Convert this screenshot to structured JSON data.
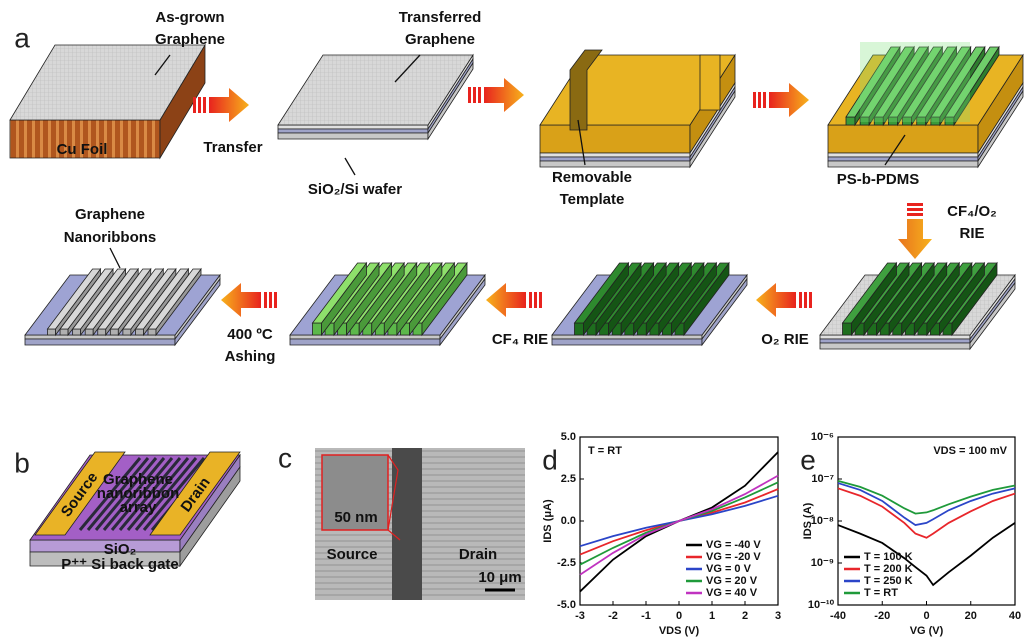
{
  "panel_a": {
    "label": "a",
    "as_grown": [
      "As-grown",
      "Graphene"
    ],
    "cu_foil": "Cu Foil",
    "transfer": "Transfer",
    "transferred": [
      "Transferred",
      "Graphene"
    ],
    "wafer": "SiO₂/Si wafer",
    "template": [
      "Removable",
      "Template"
    ],
    "bcp": "PS-b-PDMS",
    "rie1": [
      "CF₄/O₂",
      "RIE"
    ],
    "o2": "O₂ RIE",
    "cf4": "CF₄ RIE",
    "ashing": [
      "400 ºC",
      "Ashing"
    ],
    "gnr": [
      "Graphene",
      "Nanoribbons"
    ]
  },
  "panel_b": {
    "label": "b",
    "source": "Source",
    "drain": "Drain",
    "array": [
      "Graphene",
      "nanoribbon",
      "array"
    ],
    "oxide": "SiO₂",
    "gate": "P⁺⁺ Si back gate"
  },
  "panel_c": {
    "label": "c",
    "inset_scale": "50 nm",
    "source": "Source",
    "drain": "Drain",
    "scale": "10 μm"
  },
  "chart_labels": [
    "d",
    "e"
  ],
  "chart_data": [
    {
      "type": "line",
      "annotation": "T = RT",
      "xlabel": "VDS (V)",
      "ylabel": "IDS (μA)",
      "x": [
        -3,
        -2,
        -1,
        0,
        1,
        2,
        3
      ],
      "xlim": [
        -3,
        3
      ],
      "xticks": [
        -3,
        -2,
        -1,
        0,
        1,
        2,
        3
      ],
      "ylim": [
        -5,
        5
      ],
      "yticks": [
        {
          "value": -5,
          "label": "-5.0"
        },
        {
          "value": -2.5,
          "label": "-2.5"
        },
        {
          "value": 0,
          "label": "0.0"
        },
        {
          "value": 2.5,
          "label": "2.5"
        },
        {
          "value": 5,
          "label": "5.0"
        }
      ],
      "legend": "lower right",
      "series": [
        {
          "name": "VG = -40 V",
          "color": "#000000",
          "values": [
            -4.2,
            -2.3,
            -0.9,
            0,
            0.8,
            2.1,
            4.1
          ]
        },
        {
          "name": "VG = -20 V",
          "color": "#e8262b",
          "values": [
            -2.0,
            -1.2,
            -0.55,
            0,
            0.5,
            1.1,
            1.9
          ]
        },
        {
          "name": "VG =   0 V",
          "color": "#2b45c8",
          "values": [
            -1.5,
            -0.9,
            -0.4,
            0,
            0.4,
            0.9,
            1.5
          ]
        },
        {
          "name": "VG =  20 V",
          "color": "#1f9a3a",
          "values": [
            -2.6,
            -1.6,
            -0.7,
            0,
            0.6,
            1.4,
            2.3
          ]
        },
        {
          "name": "VG =  40 V",
          "color": "#c033c0",
          "values": [
            -3.2,
            -1.9,
            -0.8,
            0,
            0.7,
            1.6,
            2.7
          ]
        }
      ]
    },
    {
      "type": "line",
      "annotation": "VDS = 100 mV",
      "xlabel": "VG (V)",
      "ylabel": "IDS (A)",
      "log": true,
      "x": [
        -40,
        -30,
        -20,
        -10,
        -5,
        0,
        3,
        10,
        20,
        30,
        40
      ],
      "xlim": [
        -40,
        40
      ],
      "xticks": [
        -40,
        -20,
        0,
        20,
        40
      ],
      "ylim": [
        1e-10,
        1e-06
      ],
      "yticks": [
        {
          "value": 1e-10,
          "label": "10⁻¹⁰"
        },
        {
          "value": 1e-09,
          "label": "10⁻⁹"
        },
        {
          "value": 1e-08,
          "label": "10⁻⁸"
        },
        {
          "value": 1e-07,
          "label": "10⁻⁷"
        },
        {
          "value": 1e-06,
          "label": "10⁻⁶"
        }
      ],
      "legend": "lower left",
      "series": [
        {
          "name": "T = 100 K",
          "color": "#000000",
          "values": [
            8e-09,
            5e-09,
            3e-09,
            1.3e-09,
            8e-10,
            5e-10,
            3e-10,
            6e-10,
            1.5e-09,
            4e-09,
            9e-09
          ]
        },
        {
          "name": "T = 200 K",
          "color": "#e8262b",
          "values": [
            6e-08,
            4e-08,
            2.2e-08,
            9e-09,
            5e-09,
            4e-09,
            5e-09,
            9e-09,
            1.7e-08,
            3e-08,
            4.5e-08
          ]
        },
        {
          "name": "T = 250 K",
          "color": "#2b45c8",
          "values": [
            8e-08,
            5.5e-08,
            3e-08,
            1.2e-08,
            8e-09,
            9e-09,
            1.1e-08,
            1.8e-08,
            3e-08,
            4.5e-08,
            6e-08
          ]
        },
        {
          "name": "T = RT",
          "color": "#1f9a3a",
          "values": [
            9e-08,
            6.5e-08,
            4e-08,
            2e-08,
            1.5e-08,
            1.6e-08,
            1.8e-08,
            2.5e-08,
            3.8e-08,
            5.5e-08,
            7e-08
          ]
        }
      ]
    }
  ]
}
